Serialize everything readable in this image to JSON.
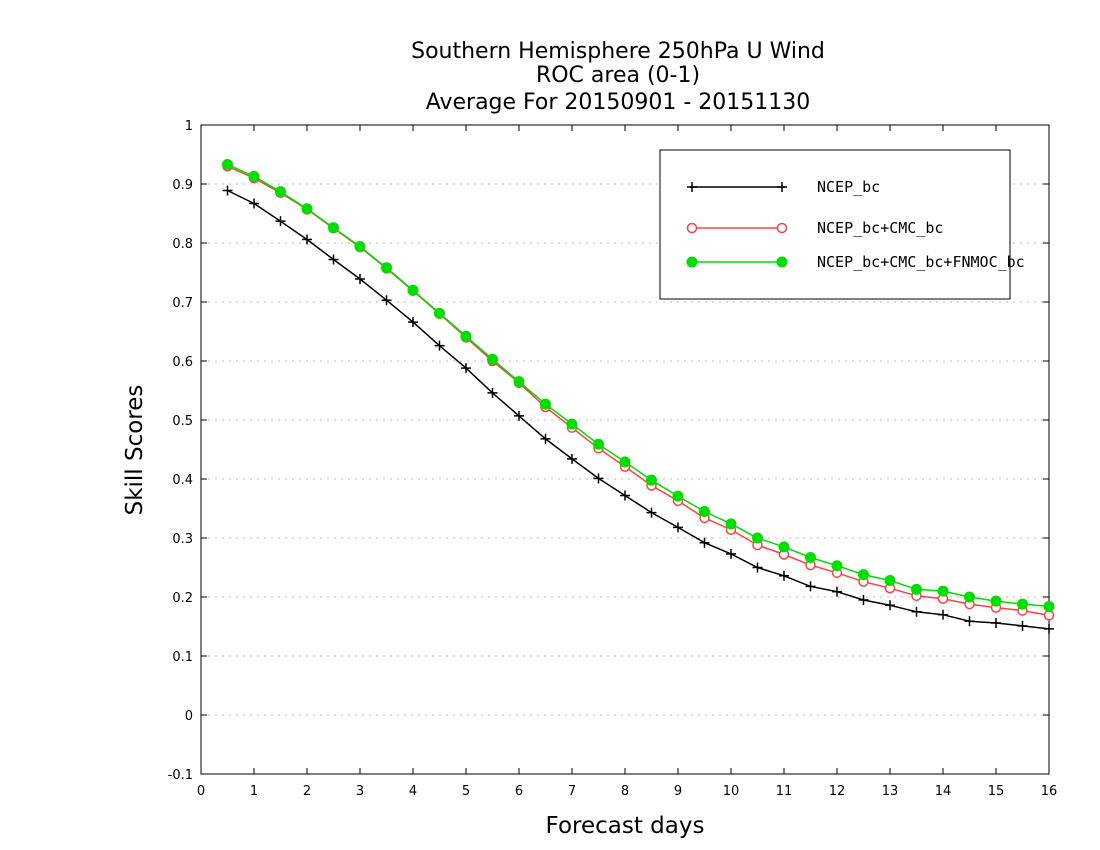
{
  "chart_data": {
    "type": "line",
    "title": [
      "Southern Hemisphere 250hPa U Wind",
      "ROC area (0-1)",
      "Average For 20150901 - 20151130"
    ],
    "xlabel": "Forecast days",
    "ylabel": "Skill Scores",
    "xlim": [
      0,
      16
    ],
    "ylim": [
      -0.1,
      1
    ],
    "xticks": [
      0,
      1,
      2,
      3,
      4,
      5,
      6,
      7,
      8,
      9,
      10,
      11,
      12,
      13,
      14,
      15,
      16
    ],
    "yticks": [
      "-0.1",
      "0",
      "0.1",
      "0.2",
      "0.3",
      "0.4",
      "0.5",
      "0.6",
      "0.7",
      "0.8",
      "0.9",
      "1"
    ],
    "grid": true,
    "legend_position": "top-right",
    "x": [
      0.5,
      1,
      1.5,
      2,
      2.5,
      3,
      3.5,
      4,
      4.5,
      5,
      5.5,
      6,
      6.5,
      7,
      7.5,
      8,
      8.5,
      9,
      9.5,
      10,
      10.5,
      11,
      11.5,
      12,
      12.5,
      13,
      13.5,
      14,
      14.5,
      15,
      15.5,
      16
    ],
    "series": [
      {
        "name": "NCEP_bc",
        "color": "#000000",
        "marker": "plus",
        "values": [
          0.889,
          0.867,
          0.837,
          0.806,
          0.772,
          0.739,
          0.703,
          0.666,
          0.626,
          0.588,
          0.546,
          0.507,
          0.468,
          0.434,
          0.401,
          0.372,
          0.343,
          0.318,
          0.292,
          0.273,
          0.25,
          0.236,
          0.218,
          0.209,
          0.195,
          0.186,
          0.175,
          0.17,
          0.159,
          0.156,
          0.151,
          0.146
        ]
      },
      {
        "name": "NCEP_bc+CMC_bc",
        "color": "#ff4040",
        "marker": "open-circle",
        "values": [
          0.93,
          0.91,
          0.885,
          0.857,
          0.825,
          0.793,
          0.757,
          0.719,
          0.68,
          0.64,
          0.6,
          0.563,
          0.522,
          0.487,
          0.452,
          0.421,
          0.389,
          0.363,
          0.334,
          0.314,
          0.288,
          0.272,
          0.254,
          0.241,
          0.226,
          0.215,
          0.202,
          0.197,
          0.188,
          0.182,
          0.177,
          0.169
        ]
      },
      {
        "name": "NCEP_bc+CMC_bc+FNMOC_bc",
        "color": "#00dd00",
        "marker": "filled-circle",
        "values": [
          0.933,
          0.913,
          0.887,
          0.858,
          0.826,
          0.794,
          0.758,
          0.72,
          0.681,
          0.642,
          0.603,
          0.565,
          0.527,
          0.493,
          0.459,
          0.429,
          0.398,
          0.371,
          0.345,
          0.324,
          0.3,
          0.285,
          0.267,
          0.253,
          0.238,
          0.228,
          0.213,
          0.21,
          0.2,
          0.193,
          0.188,
          0.184
        ]
      }
    ]
  }
}
